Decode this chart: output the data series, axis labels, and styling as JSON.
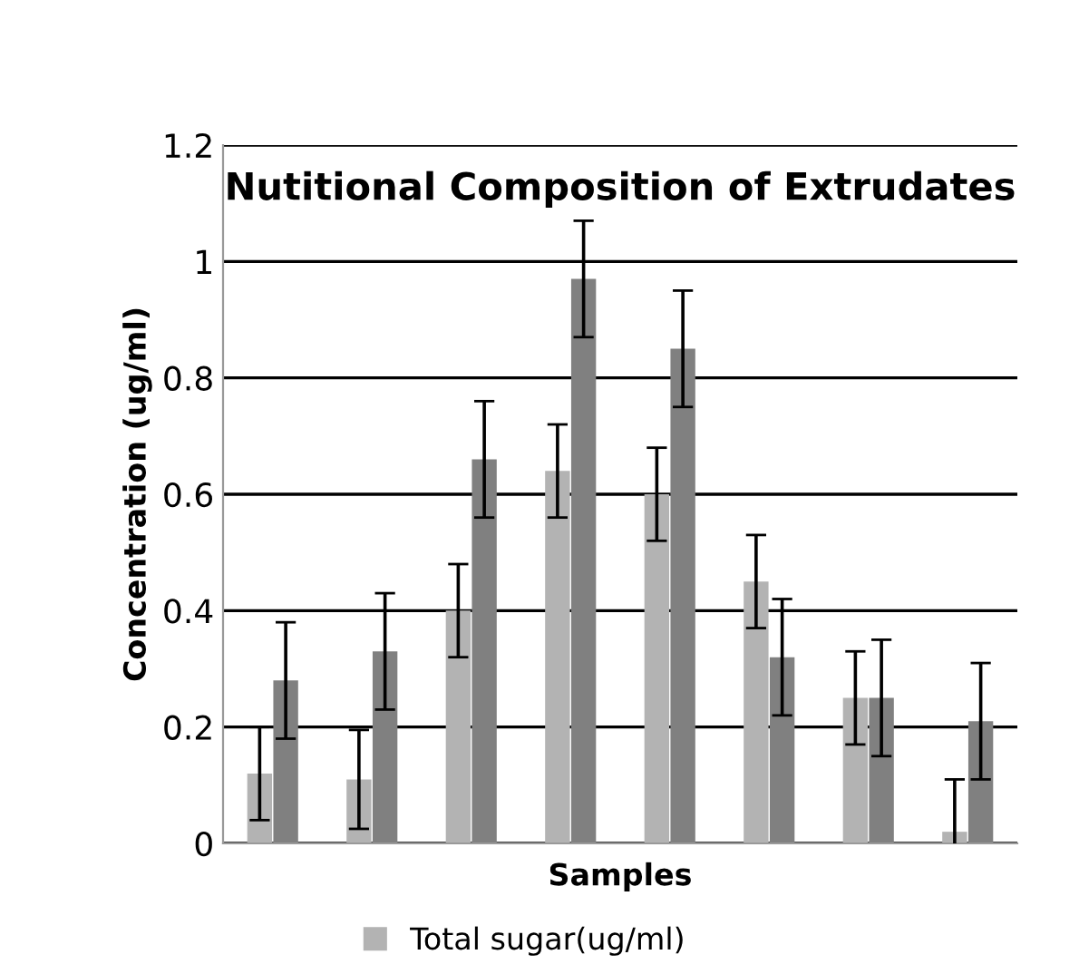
{
  "chart_data": {
    "type": "bar",
    "title": "Nutitional Composition of Extrudates",
    "xlabel": "Samples",
    "ylabel": "Concentration (ug/ml)",
    "categories": [
      null,
      null,
      null,
      null,
      null,
      null,
      null,
      null
    ],
    "series": [
      {
        "name": "Total sugar(ug/ml)",
        "color": "#b3b3b3",
        "values": [
          0.12,
          0.11,
          0.4,
          0.64,
          0.6,
          0.45,
          0.25,
          0.02
        ],
        "errors": [
          0.08,
          0.085,
          0.08,
          0.08,
          0.08,
          0.08,
          0.08,
          0.09
        ]
      },
      {
        "color": "#808080",
        "values": [
          0.28,
          0.33,
          0.66,
          0.97,
          0.85,
          0.32,
          0.25,
          0.21
        ],
        "errors": [
          0.1,
          0.1,
          0.1,
          0.1,
          0.1,
          0.1,
          0.1,
          0.1
        ]
      }
    ],
    "ylim": [
      0,
      1.2
    ],
    "yticks": [
      0,
      0.2,
      0.4,
      0.6,
      0.8,
      1,
      1.2
    ],
    "grid": "y",
    "legend": "bottom"
  }
}
